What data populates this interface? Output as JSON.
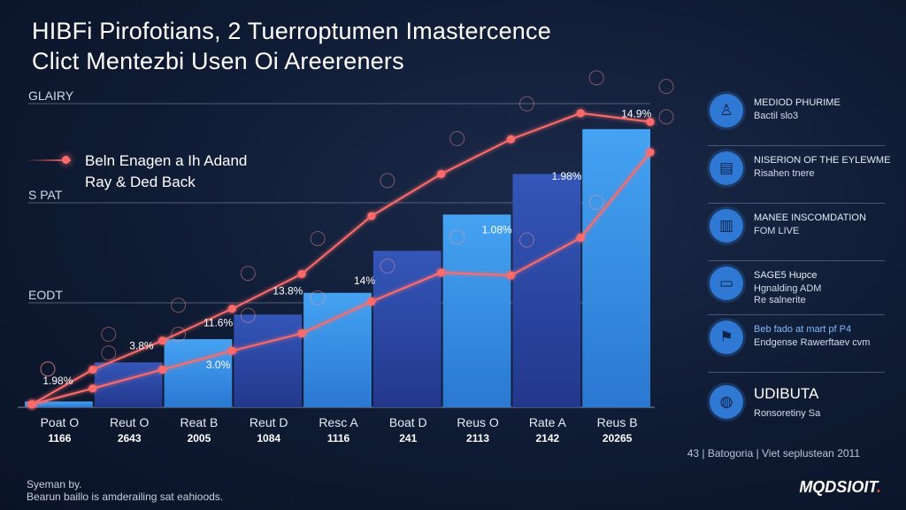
{
  "header": {
    "title_line1": "HIBFi Pirofotians, 2 Tuerroptumen Imastercence",
    "title_line2": "Clict Mentezbi Usen Oi Areereners"
  },
  "bands": [
    "GLAIRY",
    "S PAT",
    "EODT"
  ],
  "legend": {
    "line1": "Beln Enagen a Ih Adand",
    "line2": "Ray & Ded Back"
  },
  "chart_data": {
    "type": "bar",
    "categories": [
      {
        "name": "Poat O",
        "code": "1166"
      },
      {
        "name": "Reut O",
        "code": "2643"
      },
      {
        "name": "Reat B",
        "code": "2005"
      },
      {
        "name": "Reut D",
        "code": "1084"
      },
      {
        "name": "Resc A",
        "code": "1116"
      },
      {
        "name": "Boat D",
        "code": "241"
      },
      {
        "name": "Reus O",
        "code": "2113"
      },
      {
        "name": "Rate A",
        "code": "2142"
      },
      {
        "name": "Reus B",
        "code": "20265"
      }
    ],
    "bar_values": [
      0.4,
      3.1,
      4.7,
      6.4,
      7.9,
      10.8,
      13.3,
      16.1,
      19.2
    ],
    "line_upper": [
      0.2,
      2.6,
      4.6,
      6.8,
      9.2,
      13.2,
      16.1,
      18.5,
      20.3,
      19.7
    ],
    "line_lower": [
      0.2,
      1.3,
      2.6,
      3.9,
      5.1,
      7.3,
      9.3,
      9.1,
      11.7,
      17.6
    ],
    "data_labels": [
      {
        "text": "1.98%",
        "x": 0,
        "y": 1.6
      },
      {
        "text": "3.8%",
        "x": 1.2,
        "y": 4.0
      },
      {
        "text": "11.6%",
        "x": 2.3,
        "y": 5.6
      },
      {
        "text": "3.0%",
        "x": 2.3,
        "y": 2.7
      },
      {
        "text": "13.8%",
        "x": 3.3,
        "y": 7.8
      },
      {
        "text": "14%",
        "x": 4.4,
        "y": 8.5
      },
      {
        "text": "1.08%",
        "x": 6.3,
        "y": 12.0
      },
      {
        "text": "1.98%",
        "x": 7.3,
        "y": 15.7
      },
      {
        "text": "14.9%",
        "x": 8.3,
        "y": 20.0
      }
    ],
    "ylim": [
      0,
      22
    ],
    "grid": "horizontal",
    "legend_position": "top-left"
  },
  "sidebar": [
    {
      "icon": "person-icon",
      "glyph": "♙",
      "line1": "MEDIOD PHURIME",
      "line2": "Bactil slo3"
    },
    {
      "icon": "chart-icon",
      "glyph": "▤",
      "line1": "NISERION OF THE EYLEWME",
      "line2": "Risahen tnere"
    },
    {
      "icon": "building-icon",
      "glyph": "▥",
      "line1": "MANEE INSCOMDATION",
      "line2": "FOM LIVE"
    },
    {
      "icon": "monitor-icon",
      "glyph": "▭",
      "line1": "SAGE5 Hupce",
      "line2": "Hgnalding ADM",
      "line3": "Re salnerite"
    },
    {
      "icon": "rocket-icon",
      "glyph": "⚑",
      "line1": "Beb fado at mart pf P4",
      "line2": "Endgense Rawerftaev cvm"
    },
    {
      "icon": "globe-icon",
      "glyph": "◍",
      "line1": "UDIBUTA",
      "line2": "Ronsoretiny Sa"
    }
  ],
  "footnote_right": "43 | Batogoria | Viet seplustean 2011",
  "footer": {
    "line1": "Syeman by.",
    "line2": "Bearun baillo is amderailing sat eahioods."
  },
  "logo": {
    "text": "MQDSIOIT",
    "suffix": "."
  },
  "colors": {
    "bar_light": "#3a8fe6",
    "bar_dark": "#2c4fae",
    "line": "#ff6b6b",
    "icon": "#2f78d4"
  }
}
